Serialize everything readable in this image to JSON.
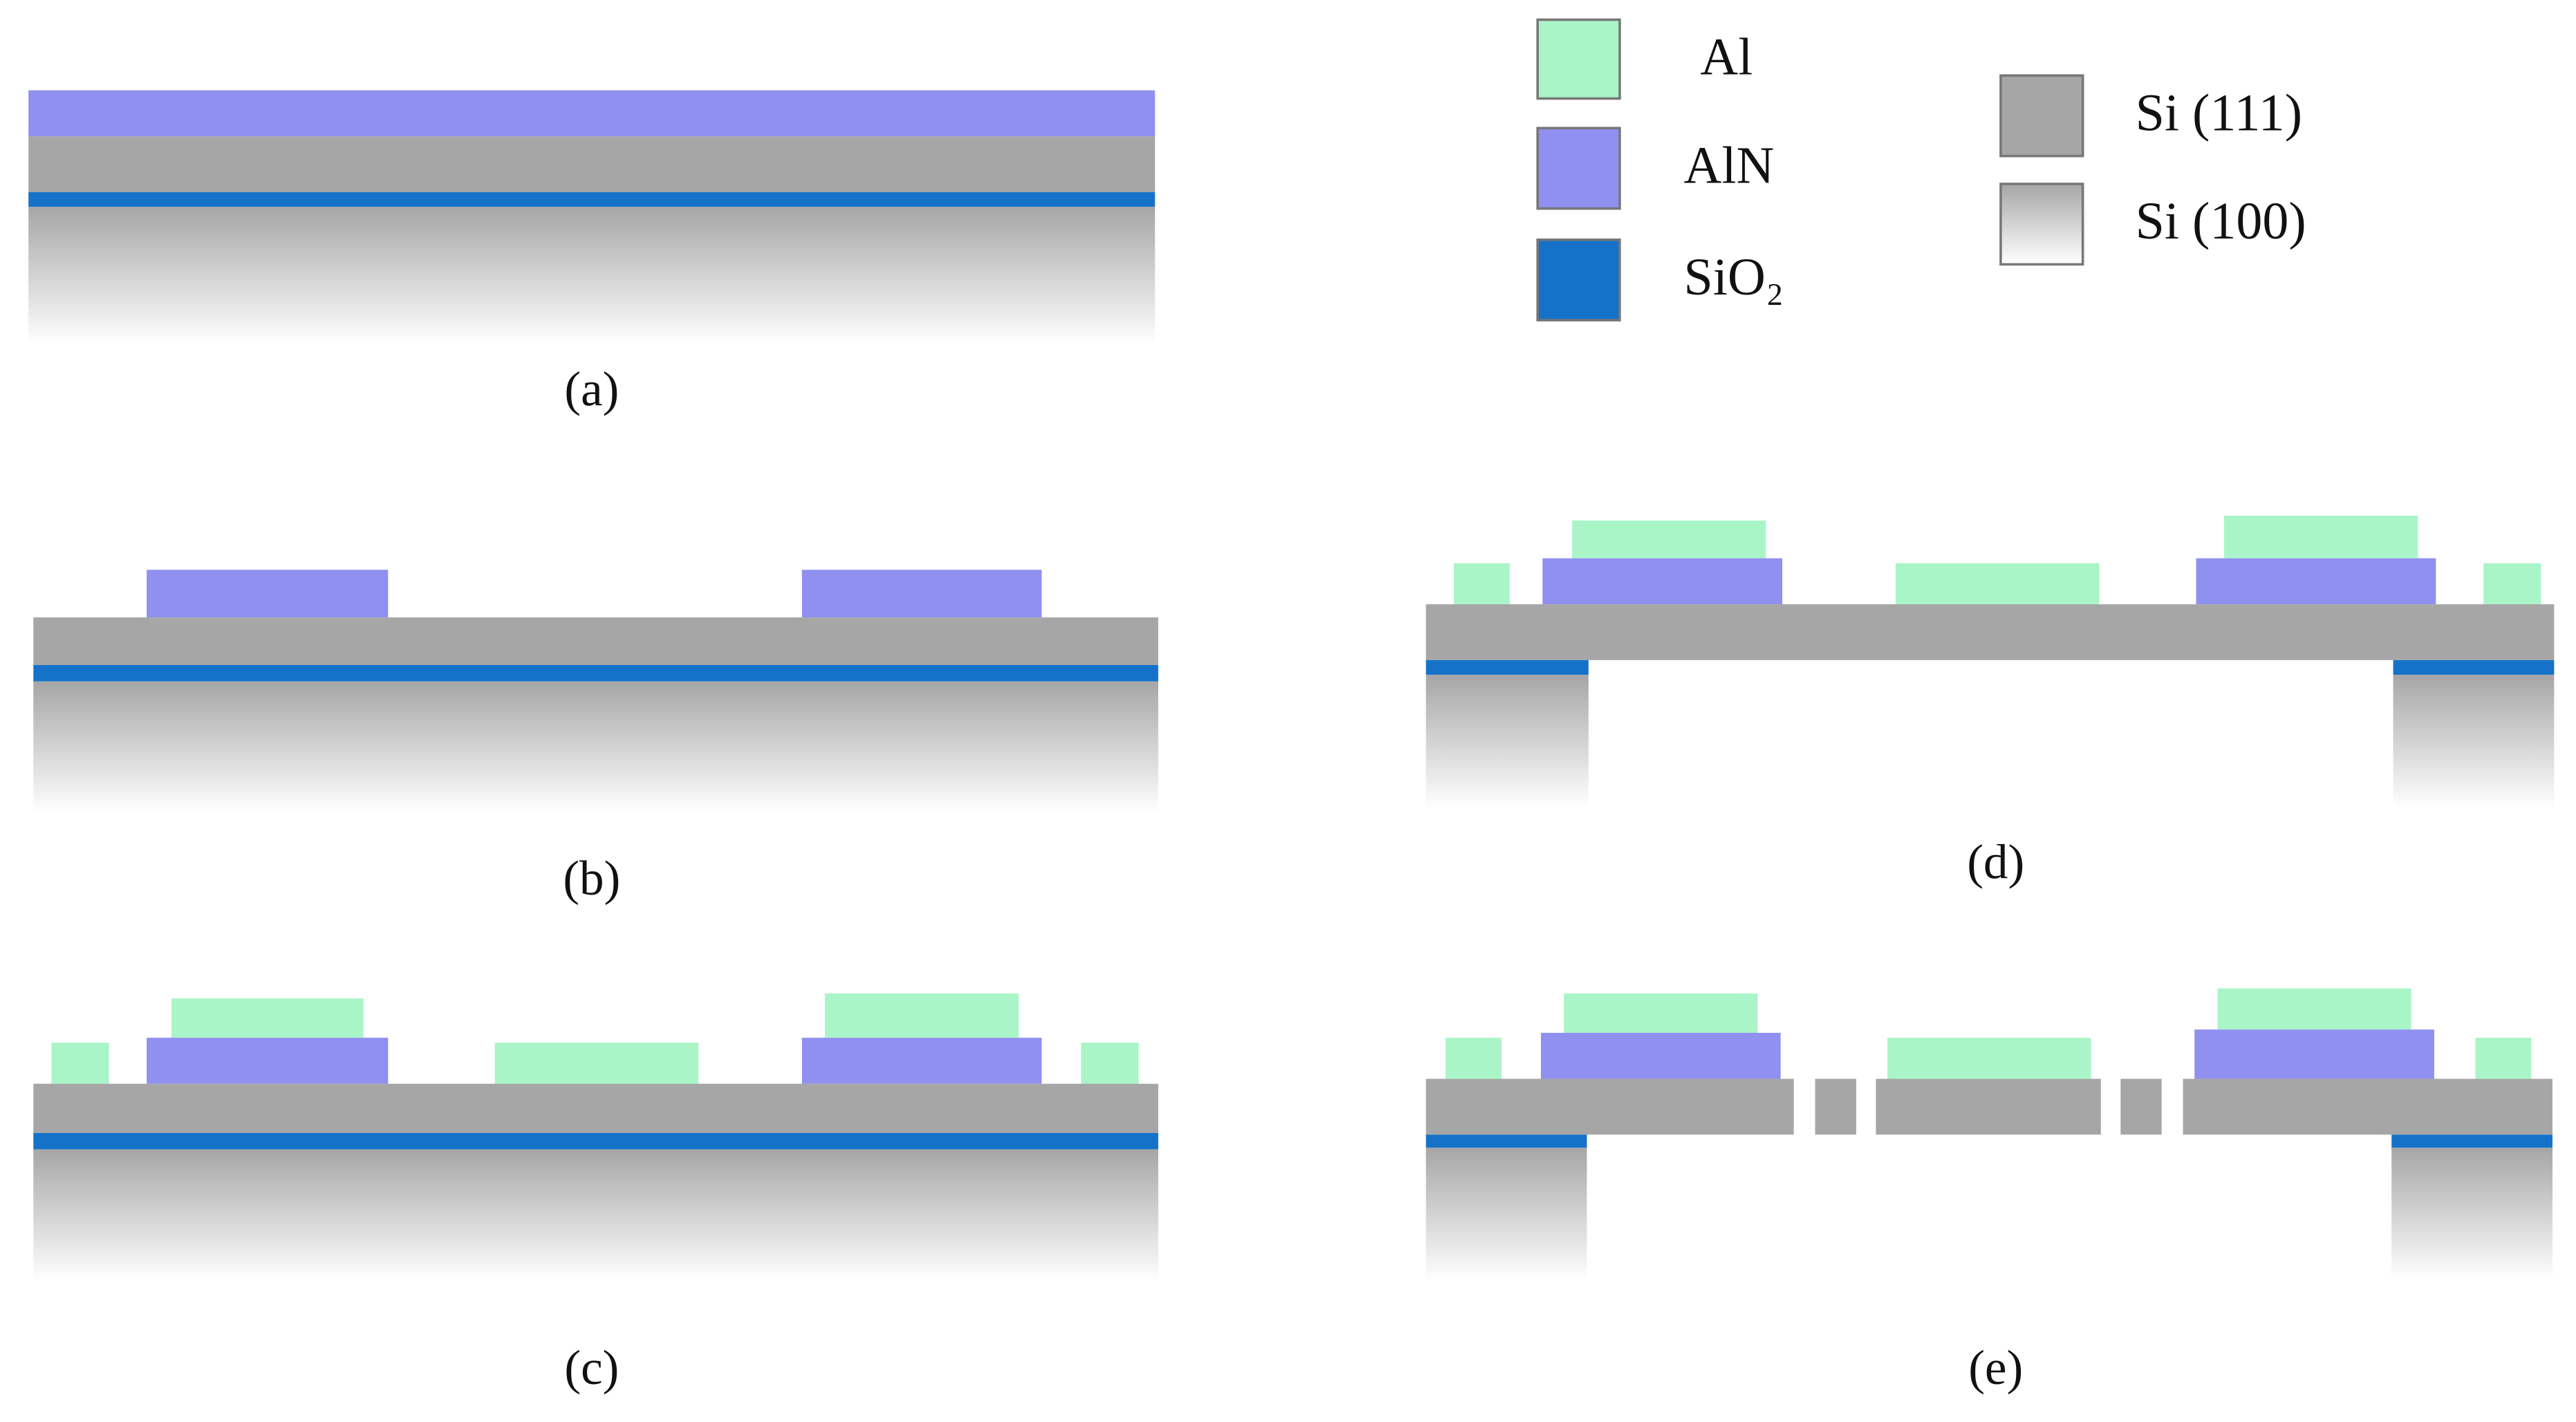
{
  "legend": {
    "items": [
      {
        "label": "Al"
      },
      {
        "label": "AlN"
      },
      {
        "label": "SiO₂"
      },
      {
        "label": "Si (111)"
      },
      {
        "label": "Si (100)"
      }
    ]
  },
  "panels": [
    {
      "caption": "(a)"
    },
    {
      "caption": "(b)"
    },
    {
      "caption": "(c)"
    },
    {
      "caption": "(d)"
    },
    {
      "caption": "(e)"
    }
  ]
}
